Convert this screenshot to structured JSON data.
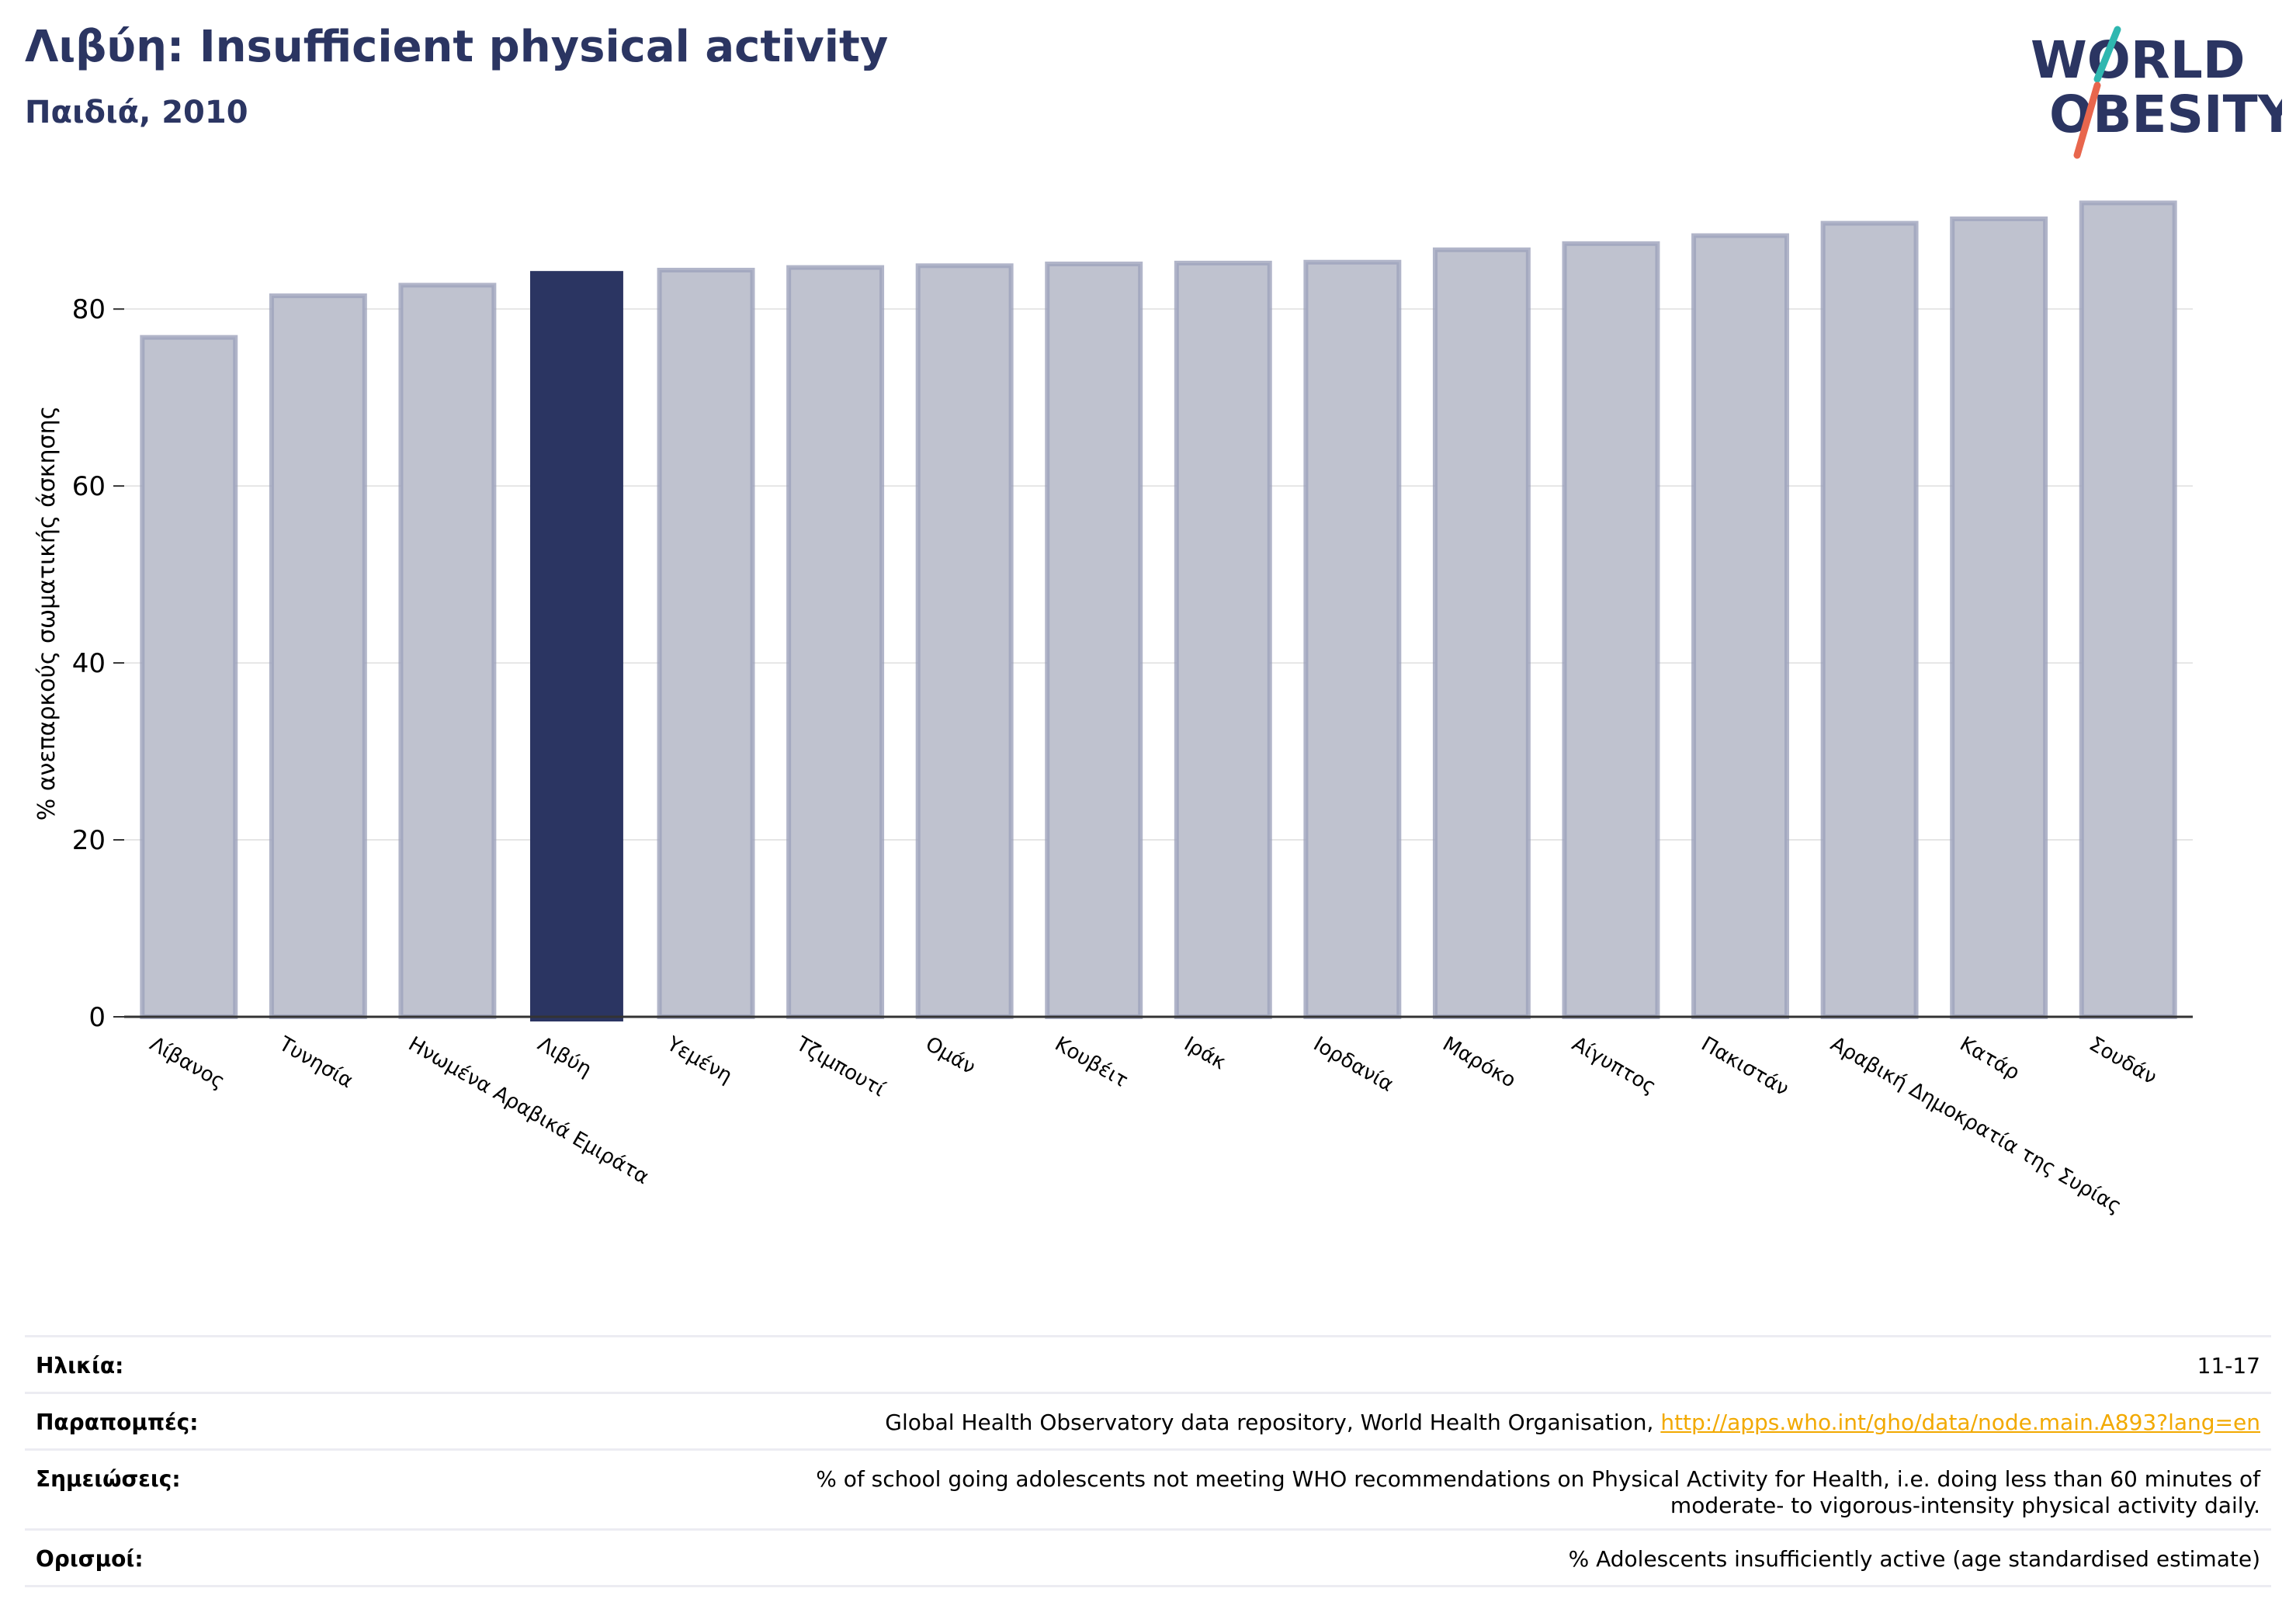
{
  "header": {
    "title": "Λιβύη: Insufficient physical activity",
    "subtitle": "Παιδιά, 2010",
    "logo_line1": "WORLD",
    "logo_line2": "OBESITY"
  },
  "chart_data": {
    "type": "bar",
    "title": "Λιβύη: Insufficient physical activity",
    "subtitle": "Παιδιά, 2010",
    "xlabel": "",
    "ylabel": "% ανεπαρκούς σωματικής άσκησης",
    "ylim": [
      0,
      93
    ],
    "yticks": [
      0,
      20,
      40,
      60,
      80
    ],
    "grid": true,
    "highlight": "Λιβύη",
    "colors": {
      "bar": "#bfc2cf",
      "bar_edge": "#9ea3bb",
      "highlight": "#2b3562",
      "axis": "#333333",
      "grid": "#e6e6e6"
    },
    "categories": [
      "Λίβανος",
      "Τυνησία",
      "Ηνωμένα Αραβικά Εμιράτα",
      "Λιβύη",
      "Υεμένη",
      "Τζιμπουτί",
      "Ομάν",
      "Κουβέιτ",
      "Ιράκ",
      "Ιορδανία",
      "Μαρόκο",
      "Αίγυπτος",
      "Πακιστάν",
      "Αραβική Δημοκρατία της Συρίας",
      "Κατάρ",
      "Σουδάν"
    ],
    "values": [
      76.8,
      81.5,
      82.7,
      84.3,
      84.4,
      84.7,
      84.9,
      85.1,
      85.2,
      85.3,
      86.7,
      87.4,
      88.3,
      89.7,
      90.2,
      92.0
    ]
  },
  "meta": [
    {
      "label": "Ηλικία:",
      "value": "11-17"
    },
    {
      "label": "Παραπομπές:",
      "value": "Global Health Observatory data repository, World Health Organisation, ",
      "link": "http://apps.who.int/gho/data/node.main.A893?lang=en"
    },
    {
      "label": "Σημειώσεις:",
      "value": "% of school going adolescents not meeting WHO recommendations on Physical Activity for Health, i.e. doing less than 60 minutes of",
      "value2": "moderate- to vigorous-intensity physical activity daily."
    },
    {
      "label": "Ορισμοί:",
      "value": "% Adolescents insufficiently active (age standardised estimate)"
    }
  ]
}
